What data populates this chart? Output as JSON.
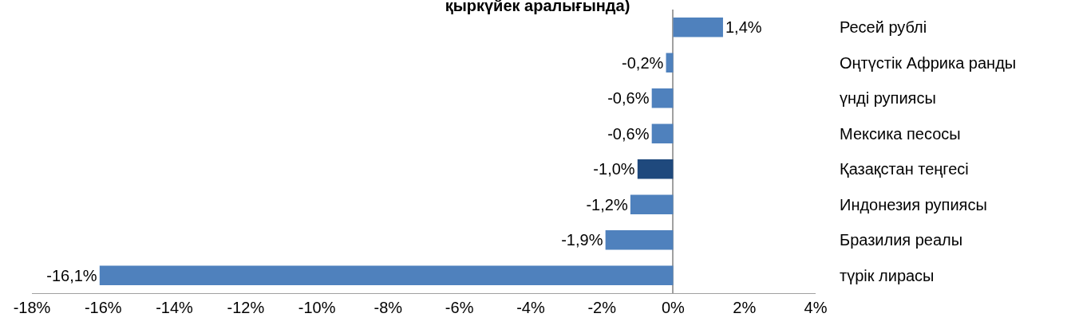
{
  "chart_data": {
    "type": "bar",
    "orientation": "horizontal",
    "title": "қыркүйек аралығында)",
    "categories": [
      "Ресей рублі",
      "Оңтүстік Африка ранды",
      "үнді рупиясы",
      "Мексика песосы",
      "Қазақстан теңгесі",
      "Индонезия рупиясы",
      "Бразилия реалы",
      "түрік лирасы"
    ],
    "values": [
      1.4,
      -0.2,
      -0.6,
      -0.6,
      -1.0,
      -1.2,
      -1.9,
      -16.1
    ],
    "value_labels": [
      "1,4%",
      "-0,2%",
      "-0,6%",
      "-0,6%",
      "-1,0%",
      "-1,2%",
      "-1,9%",
      "-16,1%"
    ],
    "colors": [
      "#4f81bd",
      "#4f81bd",
      "#4f81bd",
      "#4f81bd",
      "#1f497d",
      "#4f81bd",
      "#4f81bd",
      "#4f81bd"
    ],
    "xlim": [
      -18,
      4
    ],
    "xticks": [
      {
        "value": -18,
        "label": "-18%"
      },
      {
        "value": -16,
        "label": "-16%"
      },
      {
        "value": -14,
        "label": "-14%"
      },
      {
        "value": -12,
        "label": "-12%"
      },
      {
        "value": -10,
        "label": "-10%"
      },
      {
        "value": -8,
        "label": "-8%"
      },
      {
        "value": -6,
        "label": "-6%"
      },
      {
        "value": -4,
        "label": "-4%"
      },
      {
        "value": -2,
        "label": "-2%"
      },
      {
        "value": 0,
        "label": "0%"
      },
      {
        "value": 2,
        "label": "2%"
      },
      {
        "value": 4,
        "label": "4%"
      }
    ]
  }
}
